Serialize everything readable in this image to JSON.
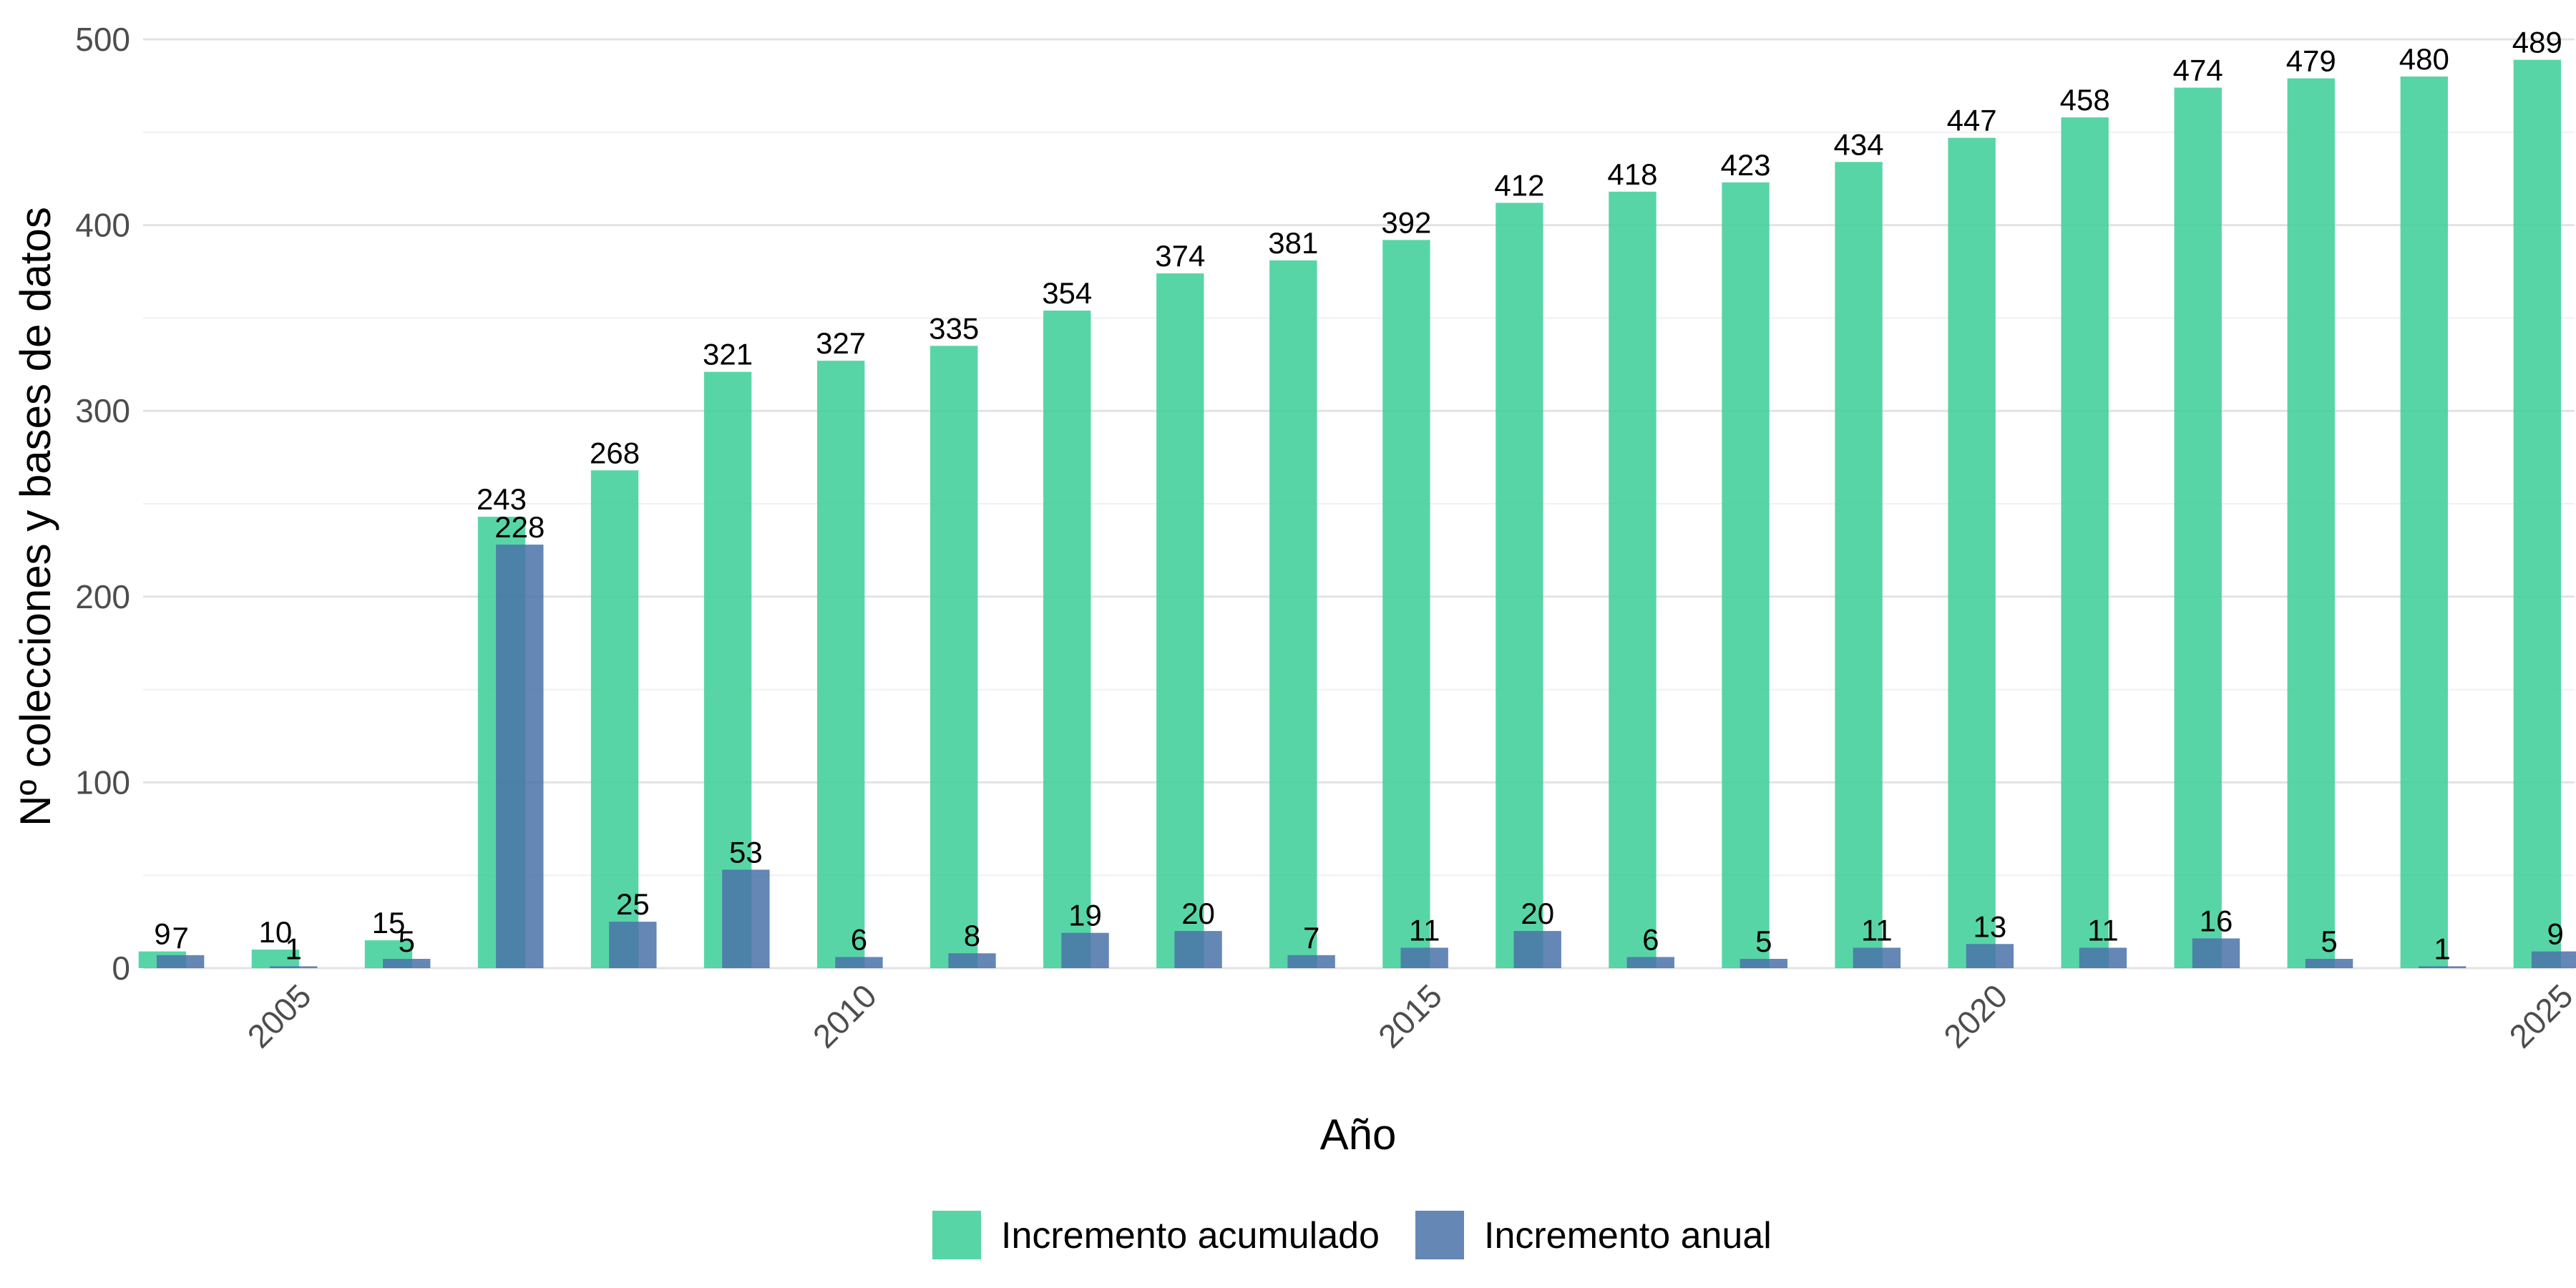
{
  "chart_data": {
    "type": "bar",
    "title": "",
    "xlabel": "Año",
    "ylabel": "Nº colecciones y bases de datos",
    "x": [
      2004,
      2005,
      2006,
      2007,
      2008,
      2009,
      2010,
      2011,
      2012,
      2013,
      2014,
      2015,
      2016,
      2017,
      2018,
      2019,
      2020,
      2021,
      2022,
      2023,
      2024,
      2025
    ],
    "series": [
      {
        "name": "Incremento acumulado",
        "color": "#3fcf99",
        "values": [
          9,
          10,
          15,
          243,
          268,
          321,
          327,
          335,
          354,
          374,
          381,
          392,
          412,
          418,
          423,
          434,
          447,
          458,
          474,
          479,
          480,
          489
        ],
        "labels": [
          "9",
          "10",
          "15",
          "243",
          "268",
          "321",
          "327",
          "335",
          "354",
          "374",
          "381",
          "392",
          "412",
          "418",
          "423",
          "434",
          "447",
          "458",
          "474",
          "479",
          "480",
          "489"
        ]
      },
      {
        "name": "Incremento anual",
        "color": "#4a72a8",
        "values": [
          7,
          1,
          5,
          228,
          25,
          53,
          6,
          8,
          19,
          20,
          7,
          11,
          20,
          6,
          5,
          11,
          13,
          11,
          16,
          5,
          1,
          9
        ],
        "labels": [
          "7",
          "1",
          "5",
          "228",
          "25",
          "53",
          "6",
          "8",
          "19",
          "20",
          "7",
          "11",
          "20",
          "6",
          "5",
          "11",
          "13",
          "11",
          "16",
          "5",
          "1",
          "9"
        ]
      }
    ],
    "ylim": [
      0,
      500
    ],
    "yticks": [
      0,
      100,
      200,
      300,
      400,
      500
    ],
    "xticks": [
      2005,
      2010,
      2015,
      2020,
      2025
    ],
    "xtick_labels": [
      "2005",
      "2010",
      "2015",
      "2020",
      "2025"
    ],
    "grid": true,
    "legend": "bottom"
  }
}
